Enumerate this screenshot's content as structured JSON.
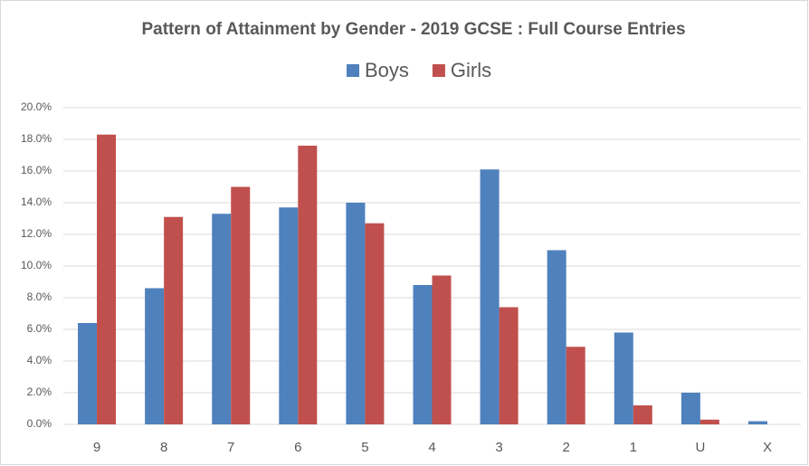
{
  "chart_data": {
    "type": "bar",
    "title": "Pattern of Attainment by Gender - 2019 GCSE : Full Course Entries",
    "categories": [
      "9",
      "8",
      "7",
      "6",
      "5",
      "4",
      "3",
      "2",
      "1",
      "U",
      "X"
    ],
    "series": [
      {
        "name": "Boys",
        "color": "#4f81bd",
        "values": [
          6.4,
          8.6,
          13.3,
          13.7,
          14.0,
          8.8,
          16.1,
          11.0,
          5.8,
          2.0,
          0.2
        ]
      },
      {
        "name": "Girls",
        "color": "#c0504d",
        "values": [
          18.3,
          13.1,
          15.0,
          17.6,
          12.7,
          9.4,
          7.4,
          4.9,
          1.2,
          0.3,
          0
        ]
      }
    ],
    "ylim": [
      0,
      20
    ],
    "yticks": [
      {
        "value": 0,
        "label": "0.0%"
      },
      {
        "value": 2,
        "label": "2.0%"
      },
      {
        "value": 4,
        "label": "4.0%"
      },
      {
        "value": 6,
        "label": "6.0%"
      },
      {
        "value": 8,
        "label": "8.0%"
      },
      {
        "value": 10,
        "label": "10.0%"
      },
      {
        "value": 12,
        "label": "12.0%"
      },
      {
        "value": 14,
        "label": "14.0%"
      },
      {
        "value": 16,
        "label": "16.0%"
      },
      {
        "value": 18,
        "label": "18.0%"
      },
      {
        "value": 20,
        "label": "20.0%"
      }
    ],
    "grid": true,
    "legend": "top"
  }
}
